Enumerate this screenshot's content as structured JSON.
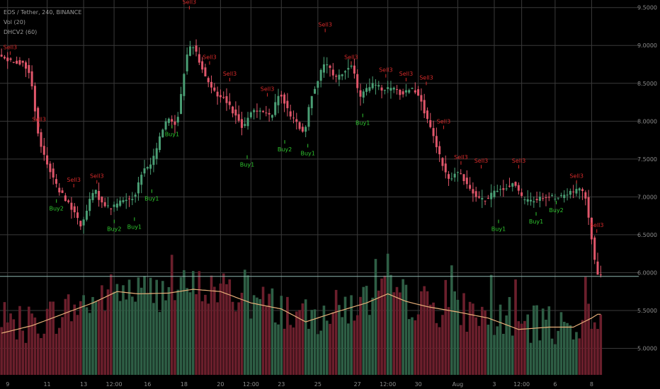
{
  "header": {
    "symbol": "EOS / Tether, 240, BINANCE",
    "vol_indicator": "Vol (20)",
    "dhc_indicator": "DHCV2 (60)"
  },
  "colors": {
    "background": "#000000",
    "grid": "#3a3a3a",
    "up": "#4a9e74",
    "down": "#e0566a",
    "vol_up": "#2e5e45",
    "vol_down": "#6b1f2c",
    "ma_line": "#e8b07a",
    "sell_label": "#d42a2a",
    "buy_label": "#2fc62f",
    "axis_text": "#8c8c8c",
    "last_price_line": "#8fb8b0"
  },
  "chart_data": {
    "type": "candlestick",
    "title": "EOS / Tether, 240, BINANCE",
    "price_axis": {
      "range": [
        4.65,
        9.6
      ],
      "ticks": [
        {
          "value": 9.5,
          "label": "9.5000"
        },
        {
          "value": 9.0,
          "label": "9.0000"
        },
        {
          "value": 8.5,
          "label": "8.5000"
        },
        {
          "value": 8.0,
          "label": "8.0000"
        },
        {
          "value": 7.5,
          "label": "7.5000"
        },
        {
          "value": 7.0,
          "label": "7.0000"
        },
        {
          "value": 6.5,
          "label": "6.5000"
        },
        {
          "value": 6.0,
          "label": "6.0000"
        },
        {
          "value": 5.5,
          "label": "5.5000"
        },
        {
          "value": 5.0,
          "label": "5.0000"
        }
      ]
    },
    "x_axis": {
      "ticks": [
        {
          "index": 2,
          "label": "9"
        },
        {
          "index": 15,
          "label": "11"
        },
        {
          "index": 27,
          "label": "13"
        },
        {
          "index": 37,
          "label": "12:00"
        },
        {
          "index": 48,
          "label": "16"
        },
        {
          "index": 60,
          "label": "18"
        },
        {
          "index": 72,
          "label": "20"
        },
        {
          "index": 82,
          "label": "12:00"
        },
        {
          "index": 92,
          "label": "23"
        },
        {
          "index": 104,
          "label": "25"
        },
        {
          "index": 117,
          "label": "27"
        },
        {
          "index": 127,
          "label": "12:00"
        },
        {
          "index": 137,
          "label": "30"
        },
        {
          "index": 150,
          "label": "Aug"
        },
        {
          "index": 162,
          "label": "3"
        },
        {
          "index": 171,
          "label": "12:00"
        },
        {
          "index": 182,
          "label": "6"
        },
        {
          "index": 194,
          "label": "8"
        }
      ]
    },
    "price_path": [
      [
        0,
        8.85
      ],
      [
        8,
        8.75
      ],
      [
        10,
        8.6
      ],
      [
        13,
        7.7
      ],
      [
        16,
        7.4
      ],
      [
        19,
        7.1
      ],
      [
        22,
        6.95
      ],
      [
        25,
        6.75
      ],
      [
        27,
        6.6
      ],
      [
        29,
        6.9
      ],
      [
        31,
        7.1
      ],
      [
        33,
        6.95
      ],
      [
        36,
        6.85
      ],
      [
        40,
        6.95
      ],
      [
        44,
        7.0
      ],
      [
        47,
        7.35
      ],
      [
        50,
        7.45
      ],
      [
        53,
        7.85
      ],
      [
        55,
        8.05
      ],
      [
        58,
        7.95
      ],
      [
        59,
        8.2
      ],
      [
        61,
        8.8
      ],
      [
        63,
        9.05
      ],
      [
        65,
        8.85
      ],
      [
        68,
        8.55
      ],
      [
        71,
        8.35
      ],
      [
        74,
        8.3
      ],
      [
        77,
        8.1
      ],
      [
        80,
        7.9
      ],
      [
        83,
        8.15
      ],
      [
        86,
        8.15
      ],
      [
        89,
        8.05
      ],
      [
        92,
        8.4
      ],
      [
        95,
        8.1
      ],
      [
        98,
        7.95
      ],
      [
        100,
        7.8
      ],
      [
        102,
        8.3
      ],
      [
        105,
        8.6
      ],
      [
        107,
        8.8
      ],
      [
        110,
        8.55
      ],
      [
        113,
        8.65
      ],
      [
        116,
        8.75
      ],
      [
        118,
        8.3
      ],
      [
        120,
        8.4
      ],
      [
        123,
        8.5
      ],
      [
        126,
        8.4
      ],
      [
        129,
        8.45
      ],
      [
        132,
        8.35
      ],
      [
        135,
        8.45
      ],
      [
        138,
        8.35
      ],
      [
        140,
        8.05
      ],
      [
        142,
        7.85
      ],
      [
        144,
        7.6
      ],
      [
        146,
        7.35
      ],
      [
        148,
        7.2
      ],
      [
        150,
        7.35
      ],
      [
        154,
        7.15
      ],
      [
        157,
        7.0
      ],
      [
        160,
        6.95
      ],
      [
        163,
        7.1
      ],
      [
        166,
        7.1
      ],
      [
        169,
        7.2
      ],
      [
        172,
        6.95
      ],
      [
        175,
        6.95
      ],
      [
        178,
        7.0
      ],
      [
        181,
        7.0
      ],
      [
        184,
        7.0
      ],
      [
        187,
        7.05
      ],
      [
        190,
        7.1
      ],
      [
        192,
        7.05
      ],
      [
        193,
        6.9
      ],
      [
        194,
        6.6
      ],
      [
        195,
        6.3
      ],
      [
        196,
        6.0
      ],
      [
        197,
        5.95
      ]
    ],
    "last_price": 5.95,
    "volume_ma_path": [
      [
        0,
        5.2
      ],
      [
        10,
        5.3
      ],
      [
        20,
        5.45
      ],
      [
        30,
        5.6
      ],
      [
        38,
        5.75
      ],
      [
        45,
        5.72
      ],
      [
        55,
        5.73
      ],
      [
        63,
        5.78
      ],
      [
        72,
        5.75
      ],
      [
        82,
        5.6
      ],
      [
        92,
        5.52
      ],
      [
        100,
        5.35
      ],
      [
        110,
        5.48
      ],
      [
        120,
        5.6
      ],
      [
        127,
        5.72
      ],
      [
        133,
        5.62
      ],
      [
        140,
        5.55
      ],
      [
        150,
        5.48
      ],
      [
        160,
        5.4
      ],
      [
        170,
        5.25
      ],
      [
        180,
        5.28
      ],
      [
        188,
        5.28
      ],
      [
        194,
        5.4
      ],
      [
        196,
        5.45
      ]
    ],
    "signals": [
      {
        "index": 3,
        "label": "Sell3",
        "type": "sell",
        "value": 8.95
      },
      {
        "index": 13,
        "label": "Sell3",
        "type": "sell",
        "value": 8.0
      },
      {
        "index": 25,
        "label": "Sell3",
        "type": "sell",
        "value": 7.2
      },
      {
        "index": 33,
        "label": "Sell3",
        "type": "sell",
        "value": 7.25
      },
      {
        "index": 65,
        "label": "Sell3",
        "type": "sell",
        "value": 9.55
      },
      {
        "index": 72,
        "label": "Sell3",
        "type": "sell",
        "value": 8.82
      },
      {
        "index": 79,
        "label": "Sell3",
        "type": "sell",
        "value": 8.6
      },
      {
        "index": 92,
        "label": "Sell3",
        "type": "sell",
        "value": 8.4
      },
      {
        "index": 112,
        "label": "Sell3",
        "type": "sell",
        "value": 9.25
      },
      {
        "index": 121,
        "label": "Sell3",
        "type": "sell",
        "value": 8.82
      },
      {
        "index": 133,
        "label": "Sell3",
        "type": "sell",
        "value": 8.65
      },
      {
        "index": 140,
        "label": "Sell3",
        "type": "sell",
        "value": 8.6
      },
      {
        "index": 147,
        "label": "Sell3",
        "type": "sell",
        "value": 8.55
      },
      {
        "index": 153,
        "label": "Sell3",
        "type": "sell",
        "value": 7.97
      },
      {
        "index": 159,
        "label": "Sell3",
        "type": "sell",
        "value": 7.5
      },
      {
        "index": 166,
        "label": "Sell3",
        "type": "sell",
        "value": 7.45
      },
      {
        "index": 179,
        "label": "Sell3",
        "type": "sell",
        "value": 7.45
      },
      {
        "index": 199,
        "label": "Sell3",
        "type": "sell",
        "value": 7.25
      },
      {
        "index": 206,
        "label": "Sell3",
        "type": "sell",
        "value": 6.6
      },
      {
        "index": 19,
        "label": "Buy2",
        "type": "buy",
        "value": 6.82
      },
      {
        "index": 39,
        "label": "Buy2",
        "type": "buy",
        "value": 6.55
      },
      {
        "index": 46,
        "label": "Buy1",
        "type": "buy",
        "value": 6.58
      },
      {
        "index": 52,
        "label": "Buy1",
        "type": "buy",
        "value": 6.95
      },
      {
        "index": 59,
        "label": "Buy1",
        "type": "buy",
        "value": 7.8
      },
      {
        "index": 85,
        "label": "Buy1",
        "type": "buy",
        "value": 7.4
      },
      {
        "index": 98,
        "label": "Buy2",
        "type": "buy",
        "value": 7.6
      },
      {
        "index": 106,
        "label": "Buy1",
        "type": "buy",
        "value": 7.55
      },
      {
        "index": 125,
        "label": "Buy1",
        "type": "buy",
        "value": 7.95
      },
      {
        "index": 172,
        "label": "Buy1",
        "type": "buy",
        "value": 6.55
      },
      {
        "index": 185,
        "label": "Buy1",
        "type": "buy",
        "value": 6.65
      },
      {
        "index": 192,
        "label": "Buy2",
        "type": "buy",
        "value": 6.8
      }
    ]
  }
}
